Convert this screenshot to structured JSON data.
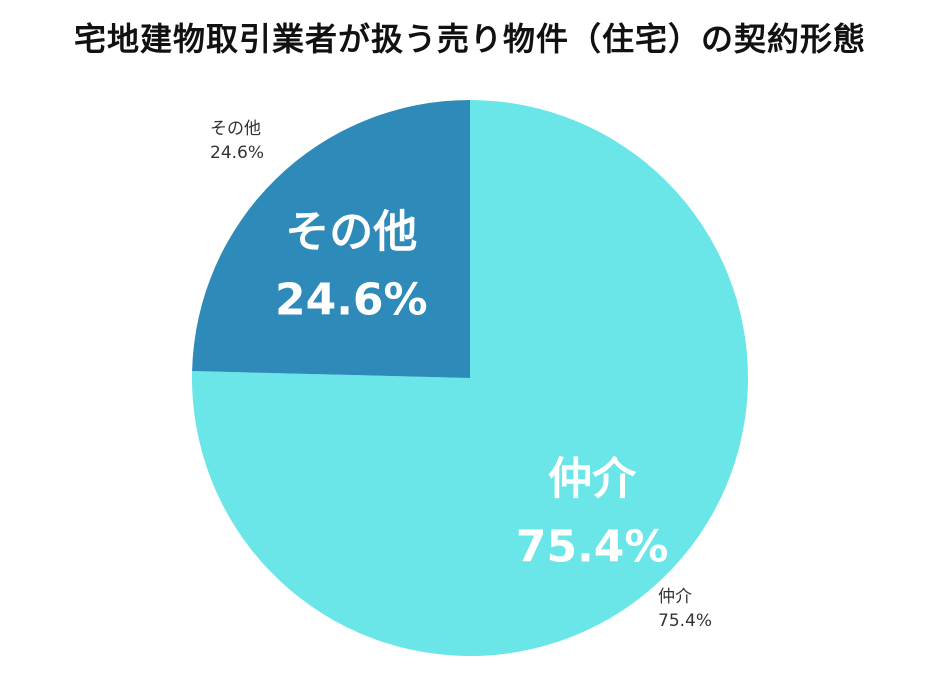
{
  "title": "宅地建物取引業者が扱う売り物件（住宅）の契約形態",
  "chart_data": {
    "type": "pie",
    "title": "宅地建物取引業者が扱う売り物件（住宅）の契約形態",
    "start_angle_deg": 0,
    "direction": "clockwise",
    "slices": [
      {
        "label": "仲介",
        "value": 75.4,
        "value_label": "75.4%",
        "color": "#6ae5e8"
      },
      {
        "label": "その他",
        "value": 24.6,
        "value_label": "24.6%",
        "color": "#2e8ab8"
      }
    ]
  }
}
